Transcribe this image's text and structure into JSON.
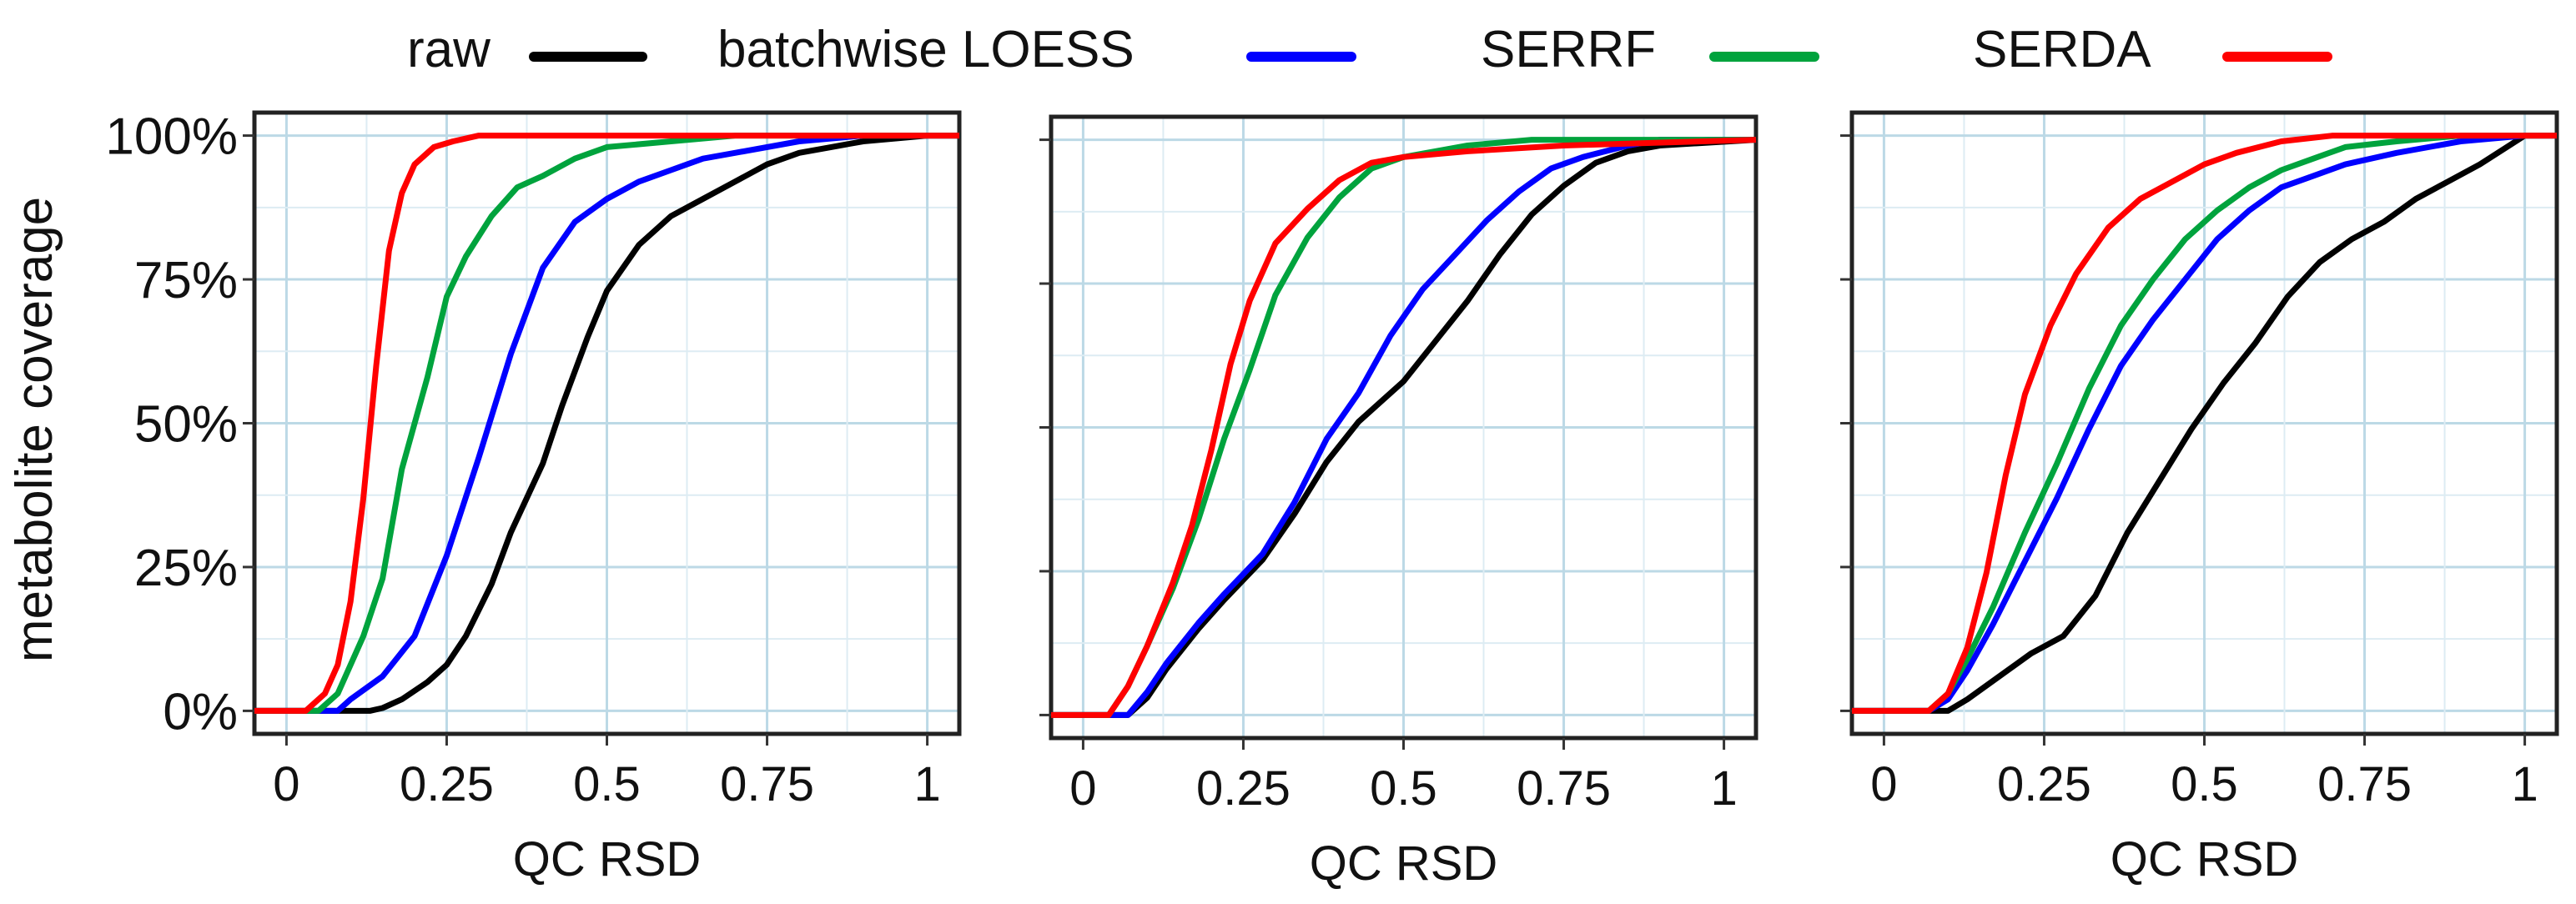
{
  "legend": [
    {
      "label": "raw",
      "color": "#000000"
    },
    {
      "label": "batchwise LOESS",
      "color": "#0000FF"
    },
    {
      "label": "SERRF",
      "color": "#00A33D"
    },
    {
      "label": "SERDA",
      "color": "#FF0000"
    }
  ],
  "chart_data": [
    {
      "type": "line",
      "xlabel": "QC RSD",
      "ylabel": "metabolite coverage",
      "xlim": [
        -0.05,
        1.05
      ],
      "ylim": [
        -0.04,
        1.04
      ],
      "x_ticks": [
        "0",
        "0.25",
        "0.5",
        "0.75",
        "1"
      ],
      "y_ticks": [
        "0%",
        "25%",
        "50%",
        "75%",
        "100%"
      ],
      "series": [
        {
          "name": "raw",
          "color": "#000000",
          "points": [
            [
              -0.05,
              0
            ],
            [
              0.13,
              0
            ],
            [
              0.15,
              0.005
            ],
            [
              0.18,
              0.02
            ],
            [
              0.22,
              0.05
            ],
            [
              0.25,
              0.08
            ],
            [
              0.28,
              0.13
            ],
            [
              0.32,
              0.22
            ],
            [
              0.35,
              0.31
            ],
            [
              0.4,
              0.43
            ],
            [
              0.43,
              0.53
            ],
            [
              0.47,
              0.65
            ],
            [
              0.5,
              0.73
            ],
            [
              0.55,
              0.81
            ],
            [
              0.6,
              0.86
            ],
            [
              0.65,
              0.89
            ],
            [
              0.7,
              0.92
            ],
            [
              0.75,
              0.95
            ],
            [
              0.8,
              0.97
            ],
            [
              0.85,
              0.98
            ],
            [
              0.9,
              0.99
            ],
            [
              1.0,
              1.0
            ],
            [
              1.05,
              1.0
            ]
          ]
        },
        {
          "name": "batchwise LOESS",
          "color": "#0000FF",
          "points": [
            [
              -0.05,
              0
            ],
            [
              0.08,
              0
            ],
            [
              0.1,
              0.02
            ],
            [
              0.15,
              0.06
            ],
            [
              0.2,
              0.13
            ],
            [
              0.25,
              0.27
            ],
            [
              0.3,
              0.44
            ],
            [
              0.35,
              0.62
            ],
            [
              0.4,
              0.77
            ],
            [
              0.45,
              0.85
            ],
            [
              0.5,
              0.89
            ],
            [
              0.55,
              0.92
            ],
            [
              0.6,
              0.94
            ],
            [
              0.65,
              0.96
            ],
            [
              0.7,
              0.97
            ],
            [
              0.8,
              0.99
            ],
            [
              0.9,
              1.0
            ],
            [
              1.05,
              1.0
            ]
          ]
        },
        {
          "name": "SERRF",
          "color": "#00A33D",
          "points": [
            [
              -0.05,
              0
            ],
            [
              0.05,
              0
            ],
            [
              0.08,
              0.03
            ],
            [
              0.12,
              0.13
            ],
            [
              0.15,
              0.23
            ],
            [
              0.18,
              0.42
            ],
            [
              0.22,
              0.58
            ],
            [
              0.25,
              0.72
            ],
            [
              0.28,
              0.79
            ],
            [
              0.32,
              0.86
            ],
            [
              0.36,
              0.91
            ],
            [
              0.4,
              0.93
            ],
            [
              0.45,
              0.96
            ],
            [
              0.5,
              0.98
            ],
            [
              0.6,
              0.99
            ],
            [
              0.7,
              1.0
            ],
            [
              1.05,
              1.0
            ]
          ]
        },
        {
          "name": "SERDA",
          "color": "#FF0000",
          "points": [
            [
              -0.05,
              0
            ],
            [
              0.03,
              0
            ],
            [
              0.06,
              0.03
            ],
            [
              0.08,
              0.08
            ],
            [
              0.1,
              0.19
            ],
            [
              0.12,
              0.37
            ],
            [
              0.14,
              0.6
            ],
            [
              0.16,
              0.8
            ],
            [
              0.18,
              0.9
            ],
            [
              0.2,
              0.95
            ],
            [
              0.23,
              0.98
            ],
            [
              0.26,
              0.99
            ],
            [
              0.3,
              1.0
            ],
            [
              1.05,
              1.0
            ]
          ]
        }
      ]
    },
    {
      "type": "line",
      "xlabel": "QC RSD",
      "ylabel": "",
      "xlim": [
        -0.05,
        1.05
      ],
      "ylim": [
        -0.04,
        1.04
      ],
      "x_ticks": [
        "0",
        "0.25",
        "0.5",
        "0.75",
        "1"
      ],
      "y_ticks": [],
      "series": [
        {
          "name": "raw",
          "color": "#000000",
          "points": [
            [
              -0.05,
              0
            ],
            [
              0.07,
              0
            ],
            [
              0.1,
              0.03
            ],
            [
              0.13,
              0.08
            ],
            [
              0.18,
              0.15
            ],
            [
              0.22,
              0.2
            ],
            [
              0.28,
              0.27
            ],
            [
              0.33,
              0.35
            ],
            [
              0.38,
              0.44
            ],
            [
              0.43,
              0.51
            ],
            [
              0.5,
              0.58
            ],
            [
              0.55,
              0.65
            ],
            [
              0.6,
              0.72
            ],
            [
              0.65,
              0.8
            ],
            [
              0.7,
              0.87
            ],
            [
              0.75,
              0.92
            ],
            [
              0.8,
              0.96
            ],
            [
              0.85,
              0.98
            ],
            [
              0.9,
              0.99
            ],
            [
              1.05,
              1.0
            ]
          ]
        },
        {
          "name": "batchwise LOESS",
          "color": "#0000FF",
          "points": [
            [
              -0.05,
              0
            ],
            [
              0.07,
              0
            ],
            [
              0.1,
              0.04
            ],
            [
              0.13,
              0.09
            ],
            [
              0.18,
              0.16
            ],
            [
              0.22,
              0.21
            ],
            [
              0.28,
              0.28
            ],
            [
              0.33,
              0.37
            ],
            [
              0.38,
              0.48
            ],
            [
              0.43,
              0.56
            ],
            [
              0.48,
              0.66
            ],
            [
              0.53,
              0.74
            ],
            [
              0.58,
              0.8
            ],
            [
              0.63,
              0.86
            ],
            [
              0.68,
              0.91
            ],
            [
              0.73,
              0.95
            ],
            [
              0.78,
              0.97
            ],
            [
              0.85,
              0.99
            ],
            [
              0.9,
              1.0
            ],
            [
              1.05,
              1.0
            ]
          ]
        },
        {
          "name": "SERRF",
          "color": "#00A33D",
          "points": [
            [
              -0.05,
              0
            ],
            [
              0.04,
              0
            ],
            [
              0.07,
              0.05
            ],
            [
              0.1,
              0.12
            ],
            [
              0.14,
              0.22
            ],
            [
              0.18,
              0.34
            ],
            [
              0.22,
              0.48
            ],
            [
              0.26,
              0.6
            ],
            [
              0.3,
              0.73
            ],
            [
              0.35,
              0.83
            ],
            [
              0.4,
              0.9
            ],
            [
              0.45,
              0.95
            ],
            [
              0.5,
              0.97
            ],
            [
              0.6,
              0.99
            ],
            [
              0.7,
              1.0
            ],
            [
              1.05,
              1.0
            ]
          ]
        },
        {
          "name": "SERDA",
          "color": "#FF0000",
          "points": [
            [
              -0.05,
              0
            ],
            [
              0.04,
              0
            ],
            [
              0.07,
              0.05
            ],
            [
              0.1,
              0.12
            ],
            [
              0.14,
              0.23
            ],
            [
              0.17,
              0.33
            ],
            [
              0.2,
              0.46
            ],
            [
              0.23,
              0.61
            ],
            [
              0.26,
              0.72
            ],
            [
              0.3,
              0.82
            ],
            [
              0.35,
              0.88
            ],
            [
              0.4,
              0.93
            ],
            [
              0.45,
              0.96
            ],
            [
              0.5,
              0.97
            ],
            [
              0.6,
              0.98
            ],
            [
              0.75,
              0.99
            ],
            [
              1.05,
              1.0
            ]
          ]
        }
      ]
    },
    {
      "type": "line",
      "xlabel": "QC RSD",
      "ylabel": "",
      "xlim": [
        -0.05,
        1.05
      ],
      "ylim": [
        -0.04,
        1.04
      ],
      "x_ticks": [
        "0",
        "0.25",
        "0.5",
        "0.75",
        "1"
      ],
      "y_ticks": [],
      "series": [
        {
          "name": "raw",
          "color": "#000000",
          "points": [
            [
              -0.05,
              0
            ],
            [
              0.1,
              0
            ],
            [
              0.13,
              0.02
            ],
            [
              0.18,
              0.06
            ],
            [
              0.23,
              0.1
            ],
            [
              0.28,
              0.13
            ],
            [
              0.33,
              0.2
            ],
            [
              0.38,
              0.31
            ],
            [
              0.43,
              0.4
            ],
            [
              0.48,
              0.49
            ],
            [
              0.53,
              0.57
            ],
            [
              0.58,
              0.64
            ],
            [
              0.63,
              0.72
            ],
            [
              0.68,
              0.78
            ],
            [
              0.73,
              0.82
            ],
            [
              0.78,
              0.85
            ],
            [
              0.83,
              0.89
            ],
            [
              0.88,
              0.92
            ],
            [
              0.93,
              0.95
            ],
            [
              1.0,
              1.0
            ],
            [
              1.05,
              1.0
            ]
          ]
        },
        {
          "name": "batchwise LOESS",
          "color": "#0000FF",
          "points": [
            [
              -0.05,
              0
            ],
            [
              0.07,
              0
            ],
            [
              0.1,
              0.02
            ],
            [
              0.13,
              0.07
            ],
            [
              0.17,
              0.15
            ],
            [
              0.22,
              0.26
            ],
            [
              0.27,
              0.37
            ],
            [
              0.32,
              0.49
            ],
            [
              0.37,
              0.6
            ],
            [
              0.42,
              0.68
            ],
            [
              0.47,
              0.75
            ],
            [
              0.52,
              0.82
            ],
            [
              0.57,
              0.87
            ],
            [
              0.62,
              0.91
            ],
            [
              0.67,
              0.93
            ],
            [
              0.72,
              0.95
            ],
            [
              0.8,
              0.97
            ],
            [
              0.9,
              0.99
            ],
            [
              1.0,
              1.0
            ],
            [
              1.05,
              1.0
            ]
          ]
        },
        {
          "name": "SERRF",
          "color": "#00A33D",
          "points": [
            [
              -0.05,
              0
            ],
            [
              0.07,
              0
            ],
            [
              0.1,
              0.03
            ],
            [
              0.13,
              0.09
            ],
            [
              0.17,
              0.18
            ],
            [
              0.22,
              0.31
            ],
            [
              0.27,
              0.43
            ],
            [
              0.32,
              0.56
            ],
            [
              0.37,
              0.67
            ],
            [
              0.42,
              0.75
            ],
            [
              0.47,
              0.82
            ],
            [
              0.52,
              0.87
            ],
            [
              0.57,
              0.91
            ],
            [
              0.62,
              0.94
            ],
            [
              0.67,
              0.96
            ],
            [
              0.72,
              0.98
            ],
            [
              0.8,
              0.99
            ],
            [
              0.9,
              1.0
            ],
            [
              1.05,
              1.0
            ]
          ]
        },
        {
          "name": "SERDA",
          "color": "#FF0000",
          "points": [
            [
              -0.05,
              0
            ],
            [
              0.07,
              0
            ],
            [
              0.1,
              0.03
            ],
            [
              0.13,
              0.11
            ],
            [
              0.16,
              0.24
            ],
            [
              0.19,
              0.41
            ],
            [
              0.22,
              0.55
            ],
            [
              0.26,
              0.67
            ],
            [
              0.3,
              0.76
            ],
            [
              0.35,
              0.84
            ],
            [
              0.4,
              0.89
            ],
            [
              0.45,
              0.92
            ],
            [
              0.5,
              0.95
            ],
            [
              0.55,
              0.97
            ],
            [
              0.62,
              0.99
            ],
            [
              0.7,
              1.0
            ],
            [
              1.05,
              1.0
            ]
          ]
        }
      ]
    }
  ]
}
